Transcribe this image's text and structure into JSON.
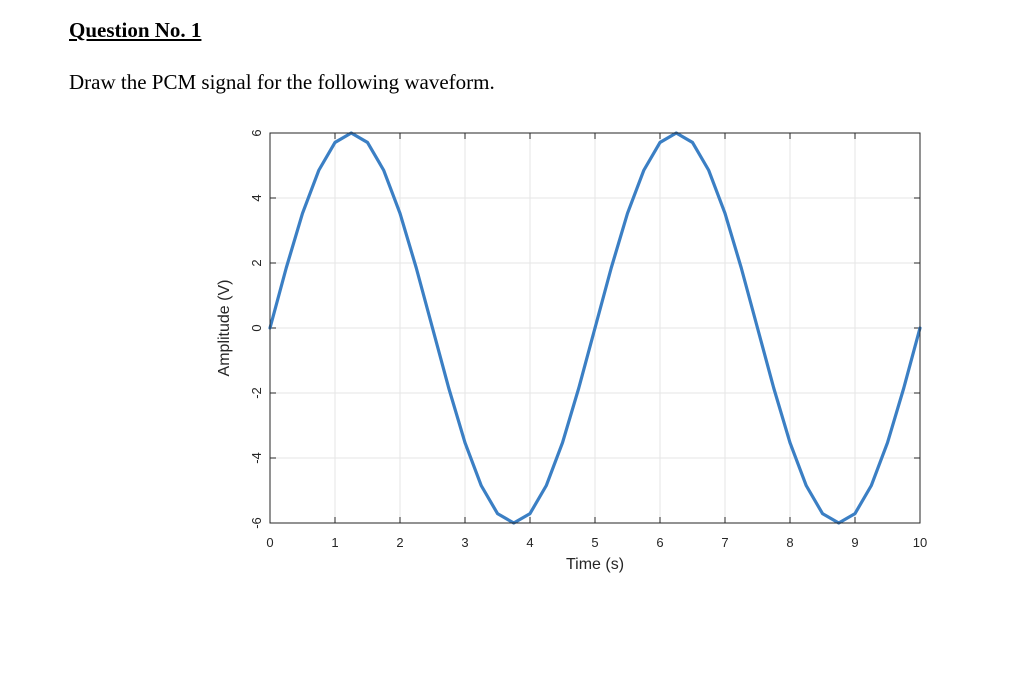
{
  "document": {
    "heading": "Question No. 1",
    "instruction": "Draw the PCM signal for the following waveform."
  },
  "chart_data": {
    "type": "line",
    "title": "",
    "xlabel": "Time (s)",
    "ylabel": "Amplitude (V)",
    "xlim": [
      0,
      10
    ],
    "ylim": [
      -6,
      6
    ],
    "xticks": [
      0,
      1,
      2,
      3,
      4,
      5,
      6,
      7,
      8,
      9,
      10
    ],
    "yticks": [
      6,
      4,
      2,
      0,
      -2,
      -4,
      -6
    ],
    "xtick_labels": [
      "0",
      "1",
      "2",
      "3",
      "4",
      "5",
      "6",
      "7",
      "8",
      "9",
      "10"
    ],
    "ytick_labels": [
      "6",
      "4",
      "2",
      "0",
      "-2",
      "-4",
      "-6"
    ],
    "grid": true,
    "legend": "none",
    "series": [
      {
        "color": "#3b7fc4",
        "x": [
          0,
          0.25,
          0.5,
          0.75,
          1,
          1.25,
          1.5,
          1.75,
          2,
          2.25,
          2.5,
          2.75,
          3,
          3.25,
          3.5,
          3.75,
          4,
          4.25,
          4.5,
          4.75,
          5,
          5.25,
          5.5,
          5.75,
          6,
          6.25,
          6.5,
          6.75,
          7,
          7.25,
          7.5,
          7.75,
          8,
          8.25,
          8.5,
          8.75,
          9,
          9.25,
          9.5,
          9.75,
          10
        ],
        "y": [
          0,
          1.85,
          3.53,
          4.85,
          5.71,
          6,
          5.71,
          4.85,
          3.53,
          1.85,
          0,
          -1.85,
          -3.53,
          -4.85,
          -5.71,
          -6,
          -5.71,
          -4.85,
          -3.53,
          -1.85,
          0,
          1.85,
          3.53,
          4.85,
          5.71,
          6,
          5.71,
          4.85,
          3.53,
          1.85,
          0,
          -1.85,
          -3.53,
          -4.85,
          -5.71,
          -6,
          -5.71,
          -4.85,
          -3.53,
          -1.85,
          0
        ]
      }
    ]
  }
}
